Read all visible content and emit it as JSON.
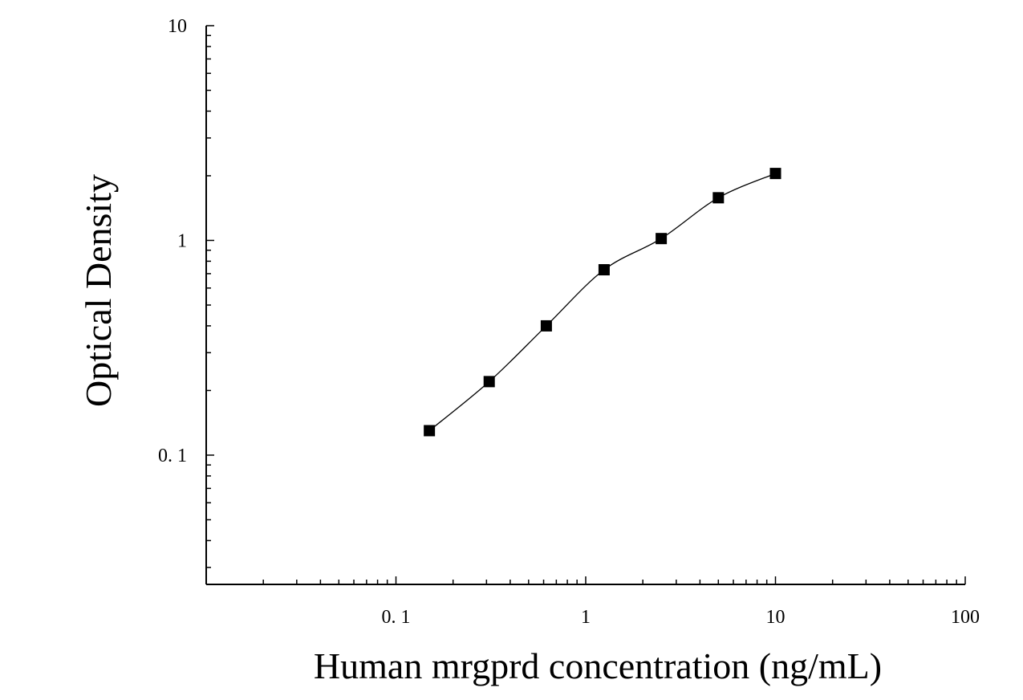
{
  "chart_data": {
    "type": "scatter",
    "title": "",
    "xlabel": "Human mrgprd concentration (ng/mL)",
    "ylabel": "Optical Density",
    "x_scale": "log",
    "y_scale": "log",
    "xlim": [
      0.01,
      100
    ],
    "ylim": [
      0.025,
      10
    ],
    "x_ticks": [
      {
        "value": 0.1,
        "label": "0. 1"
      },
      {
        "value": 1,
        "label": "1"
      },
      {
        "value": 10,
        "label": "10"
      },
      {
        "value": 100,
        "label": "100"
      }
    ],
    "y_ticks": [
      {
        "value": 0.1,
        "label": "0. 1"
      },
      {
        "value": 1,
        "label": "1"
      },
      {
        "value": 10,
        "label": "10"
      }
    ],
    "grid": false,
    "legend": "none",
    "marker": "square",
    "marker_color": "#000000",
    "line_color": "#000000",
    "series": [
      {
        "x": [
          0.15,
          0.31,
          0.62,
          1.25,
          2.5,
          5,
          10
        ],
        "y": [
          0.13,
          0.22,
          0.4,
          0.73,
          1.02,
          1.58,
          2.05
        ]
      }
    ]
  }
}
